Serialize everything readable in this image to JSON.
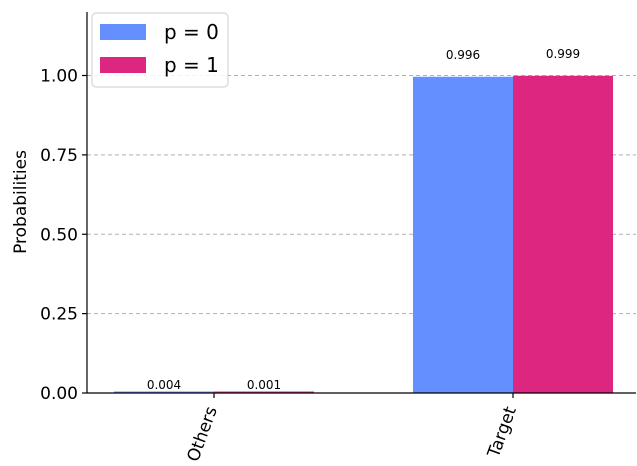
{
  "chart_data": {
    "type": "bar",
    "categories": [
      "Others",
      "Target"
    ],
    "series": [
      {
        "name": "p = 0",
        "values": [
          0.004,
          0.996
        ],
        "labels": [
          "0.004",
          "0.996"
        ],
        "color": "#648fff"
      },
      {
        "name": "p = 1",
        "values": [
          0.001,
          0.999
        ],
        "labels": [
          "0.001",
          "0.999"
        ],
        "color": "#dc267f"
      }
    ],
    "title": "",
    "xlabel": "",
    "ylabel": "Probabilities",
    "ylim": [
      0,
      1.2
    ],
    "yticks": [
      "0.00",
      "0.25",
      "0.50",
      "0.75",
      "1.00"
    ],
    "ytick_values": [
      0,
      0.25,
      0.5,
      0.75,
      1.0
    ],
    "grid": "horizontal dashed",
    "legend_position": "top-left"
  }
}
